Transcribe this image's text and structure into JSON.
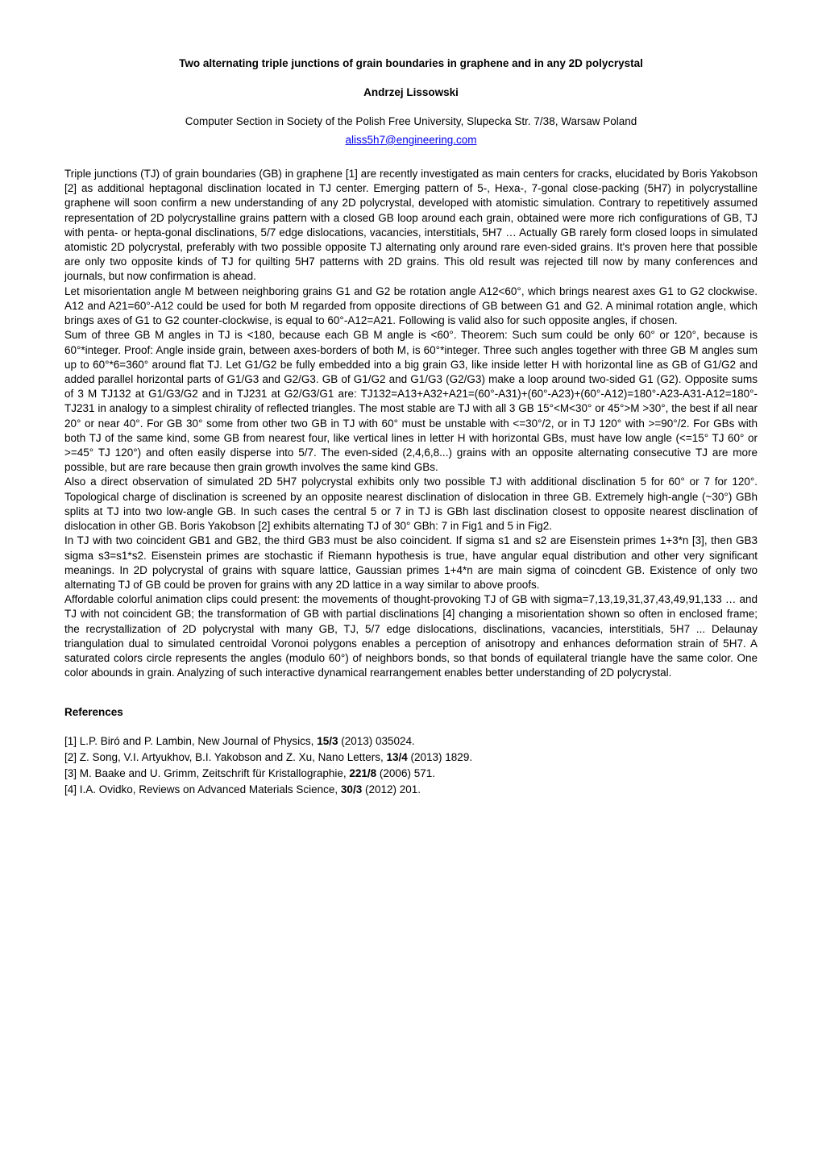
{
  "title": "Two alternating triple junctions of grain boundaries in graphene and in any 2D polycrystal",
  "author": "Andrzej Lissowski",
  "affiliation": "Computer Section in Society of the Polish Free University, Slupecka Str. 7/38, Warsaw Poland",
  "email": "aliss5h7@engineering.com",
  "body": "Triple junctions (TJ) of grain boundaries (GB) in graphene [1] are recently investigated as main centers for cracks, elucidated by Boris Yakobson [2] as additional heptagonal disclination located in TJ center. Emerging pattern of 5-, Hexa-, 7-gonal close-packing (5H7) in polycrystalline graphene will soon confirm a new understanding of any 2D polycrystal, developed with atomistic simulation. Contrary to repetitively assumed representation of 2D polycrystalline grains pattern with a closed GB loop around each grain, obtained were more rich configurations of GB, TJ with penta- or hepta-gonal disclinations, 5/7 edge dislocations, vacancies, interstitials, 5H7 … Actually GB rarely form closed loops in simulated atomistic 2D polycrystal, preferably with two possible opposite TJ alternating only around rare even-sided grains. It's proven here that possible are only two opposite kinds of TJ for quilting 5H7 patterns with 2D grains. This old result was rejected till now by many conferences and journals, but now confirmation is ahead.\nLet misorientation angle M between neighboring grains G1 and G2 be rotation angle A12<60°, which brings nearest axes G1 to G2 clockwise. A12 and A21=60°-A12 could be used for both M regarded from opposite directions of GB between G1 and G2. A minimal rotation angle, which brings axes of G1 to G2 counter-clockwise, is equal to 60°-A12=A21. Following is valid also for such opposite angles, if chosen.\nSum of three GB M angles in TJ is <180, because each GB M angle is <60°. Theorem: Such sum could be only 60° or 120°, because is 60°*integer. Proof: Angle inside grain, between axes-borders of both M, is 60°*integer. Three such angles together with three GB M angles sum up to 60°*6=360° around flat TJ. Let G1/G2 be fully embedded into a big grain G3, like inside letter H with horizontal line as GB of G1/G2 and added parallel horizontal parts of G1/G3 and G2/G3. GB of G1/G2 and G1/G3 (G2/G3) make a loop around two-sided G1 (G2). Opposite sums of 3 M TJ132 at G1/G3/G2 and in TJ231 at G2/G3/G1 are: TJ132=A13+A32+A21=(60°-A31)+(60°-A23)+(60°-A12)=180°-A23-A31-A12=180°-TJ231 in analogy to a simplest chirality of reflected triangles. The most stable are TJ with all 3 GB 15°<M<30° or 45°>M >30°, the best if all near 20° or near 40°. For GB 30° some from other two GB in TJ with 60° must be unstable with <=30°/2, or in TJ 120° with >=90°/2. For GBs with both TJ of the same kind, some GB from nearest four, like vertical lines in letter H with horizontal GBs, must have low angle (<=15° TJ 60° or >=45° TJ 120°) and often easily disperse into 5/7. The even-sided (2,4,6,8...) grains with an opposite alternating consecutive TJ are more possible, but are rare because then grain growth involves the same kind GBs.\nAlso a direct observation of simulated 2D 5H7 polycrystal exhibits only two possible TJ with additional disclination 5 for 60° or 7 for 120°. Topological charge of disclination is screened by an opposite nearest disclination of dislocation in three GB. Extremely high-angle (~30°) GBh splits at TJ into two low-angle GB. In such cases the central 5 or 7 in TJ is GBh last disclination closest to opposite nearest disclination of dislocation in other GB. Boris Yakobson [2] exhibits alternating TJ of 30° GBh: 7 in Fig1 and 5 in Fig2.\nIn TJ with two coincident GB1 and GB2, the third GB3 must be also coincident. If sigma s1 and s2 are Eisenstein primes 1+3*n [3], then GB3 sigma s3=s1*s2. Eisenstein primes are stochastic if Riemann hypothesis is true, have angular equal distribution and other very significant meanings. In 2D polycrystal of grains with square lattice, Gaussian primes 1+4*n are main sigma of coincdent GB. Existence of only two alternating TJ of GB could be proven for grains with any 2D lattice in a way similar to above proofs.\nAffordable colorful animation clips could present: the movements of thought-provoking TJ of GB with sigma=7,13,19,31,37,43,49,91,133 … and TJ with not coincident GB; the transformation of GB with partial disclinations [4] changing a misorientation shown so often in enclosed frame; the recrystallization of 2D polycrystal with many GB, TJ, 5/7 edge dislocations, disclinations, vacancies, interstitials, 5H7 ... Delaunay triangulation dual to simulated centroidal Voronoi polygons enables a perception of anisotropy and enhances deformation strain of 5H7. A saturated colors circle represents the angles (modulo 60°) of neighbors bonds, so that bonds of equilateral triangle have the same color. One color abounds in grain. Analyzing of such interactive dynamical rearrangement enables better understanding of 2D polycrystal.",
  "references_heading": "References",
  "references": [
    {
      "num": "[1]",
      "pre": " L.P. Biró and P. Lambin, New Journal of Physics, ",
      "vol": "15/3",
      "post": " (2013) 035024."
    },
    {
      "num": "[2]",
      "pre": " Z. Song, V.I. Artyukhov, B.I. Yakobson and Z. Xu, Nano Letters, ",
      "vol": "13/4",
      "post": " (2013) 1829."
    },
    {
      "num": "[3]",
      "pre": " M. Baake and U. Grimm, Zeitschrift für  Kristallographie, ",
      "vol": "221/8",
      "post": " (2006) 571."
    },
    {
      "num": "[4]",
      "pre": " I.A. Ovidko, Reviews on Advanced Materials Science, ",
      "vol": "30/3",
      "post": " (2012) 201."
    }
  ]
}
